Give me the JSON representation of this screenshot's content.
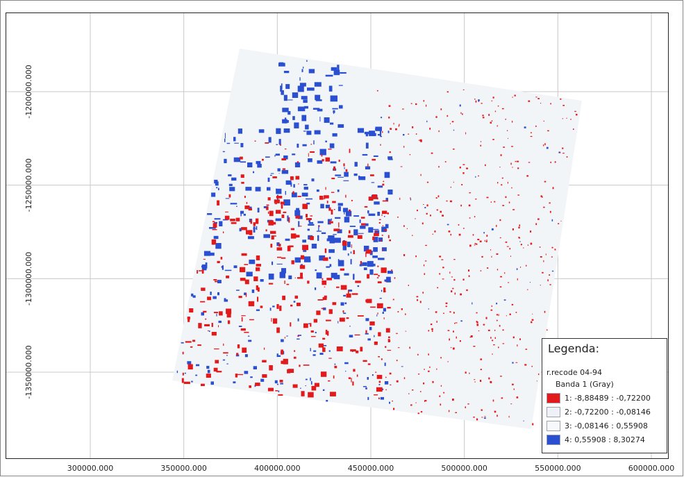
{
  "map": {
    "xticks": [
      {
        "value": 300000,
        "label": "300000.000"
      },
      {
        "value": 350000,
        "label": "350000.000"
      },
      {
        "value": 400000,
        "label": "400000.000"
      },
      {
        "value": 450000,
        "label": "450000.000"
      },
      {
        "value": 500000,
        "label": "500000.000"
      },
      {
        "value": 550000,
        "label": "550000.000"
      },
      {
        "value": 600000,
        "label": "600000.000"
      }
    ],
    "yticks": [
      {
        "value": -1200000,
        "label": "-1200000.000"
      },
      {
        "value": -1250000,
        "label": "-1250000.000"
      },
      {
        "value": -1300000,
        "label": "-1300000.000"
      },
      {
        "value": -1350000,
        "label": "-1350000.000"
      }
    ],
    "legend": {
      "title": "Legenda:",
      "layer": "r.recode 04-94",
      "band": "Banda 1 (Gray)",
      "items": [
        {
          "label": "1: -8,88489 : -0,72200",
          "color": "#e31a1c"
        },
        {
          "label": "2: -0,72200 : -0,08146",
          "color": "#eef2f6"
        },
        {
          "label": "3: -0,08146 : 0,55908",
          "color": "#f6f8fb"
        },
        {
          "label": "4: 0,55908 : 8,30274",
          "color": "#2a4fd1"
        }
      ]
    }
  }
}
